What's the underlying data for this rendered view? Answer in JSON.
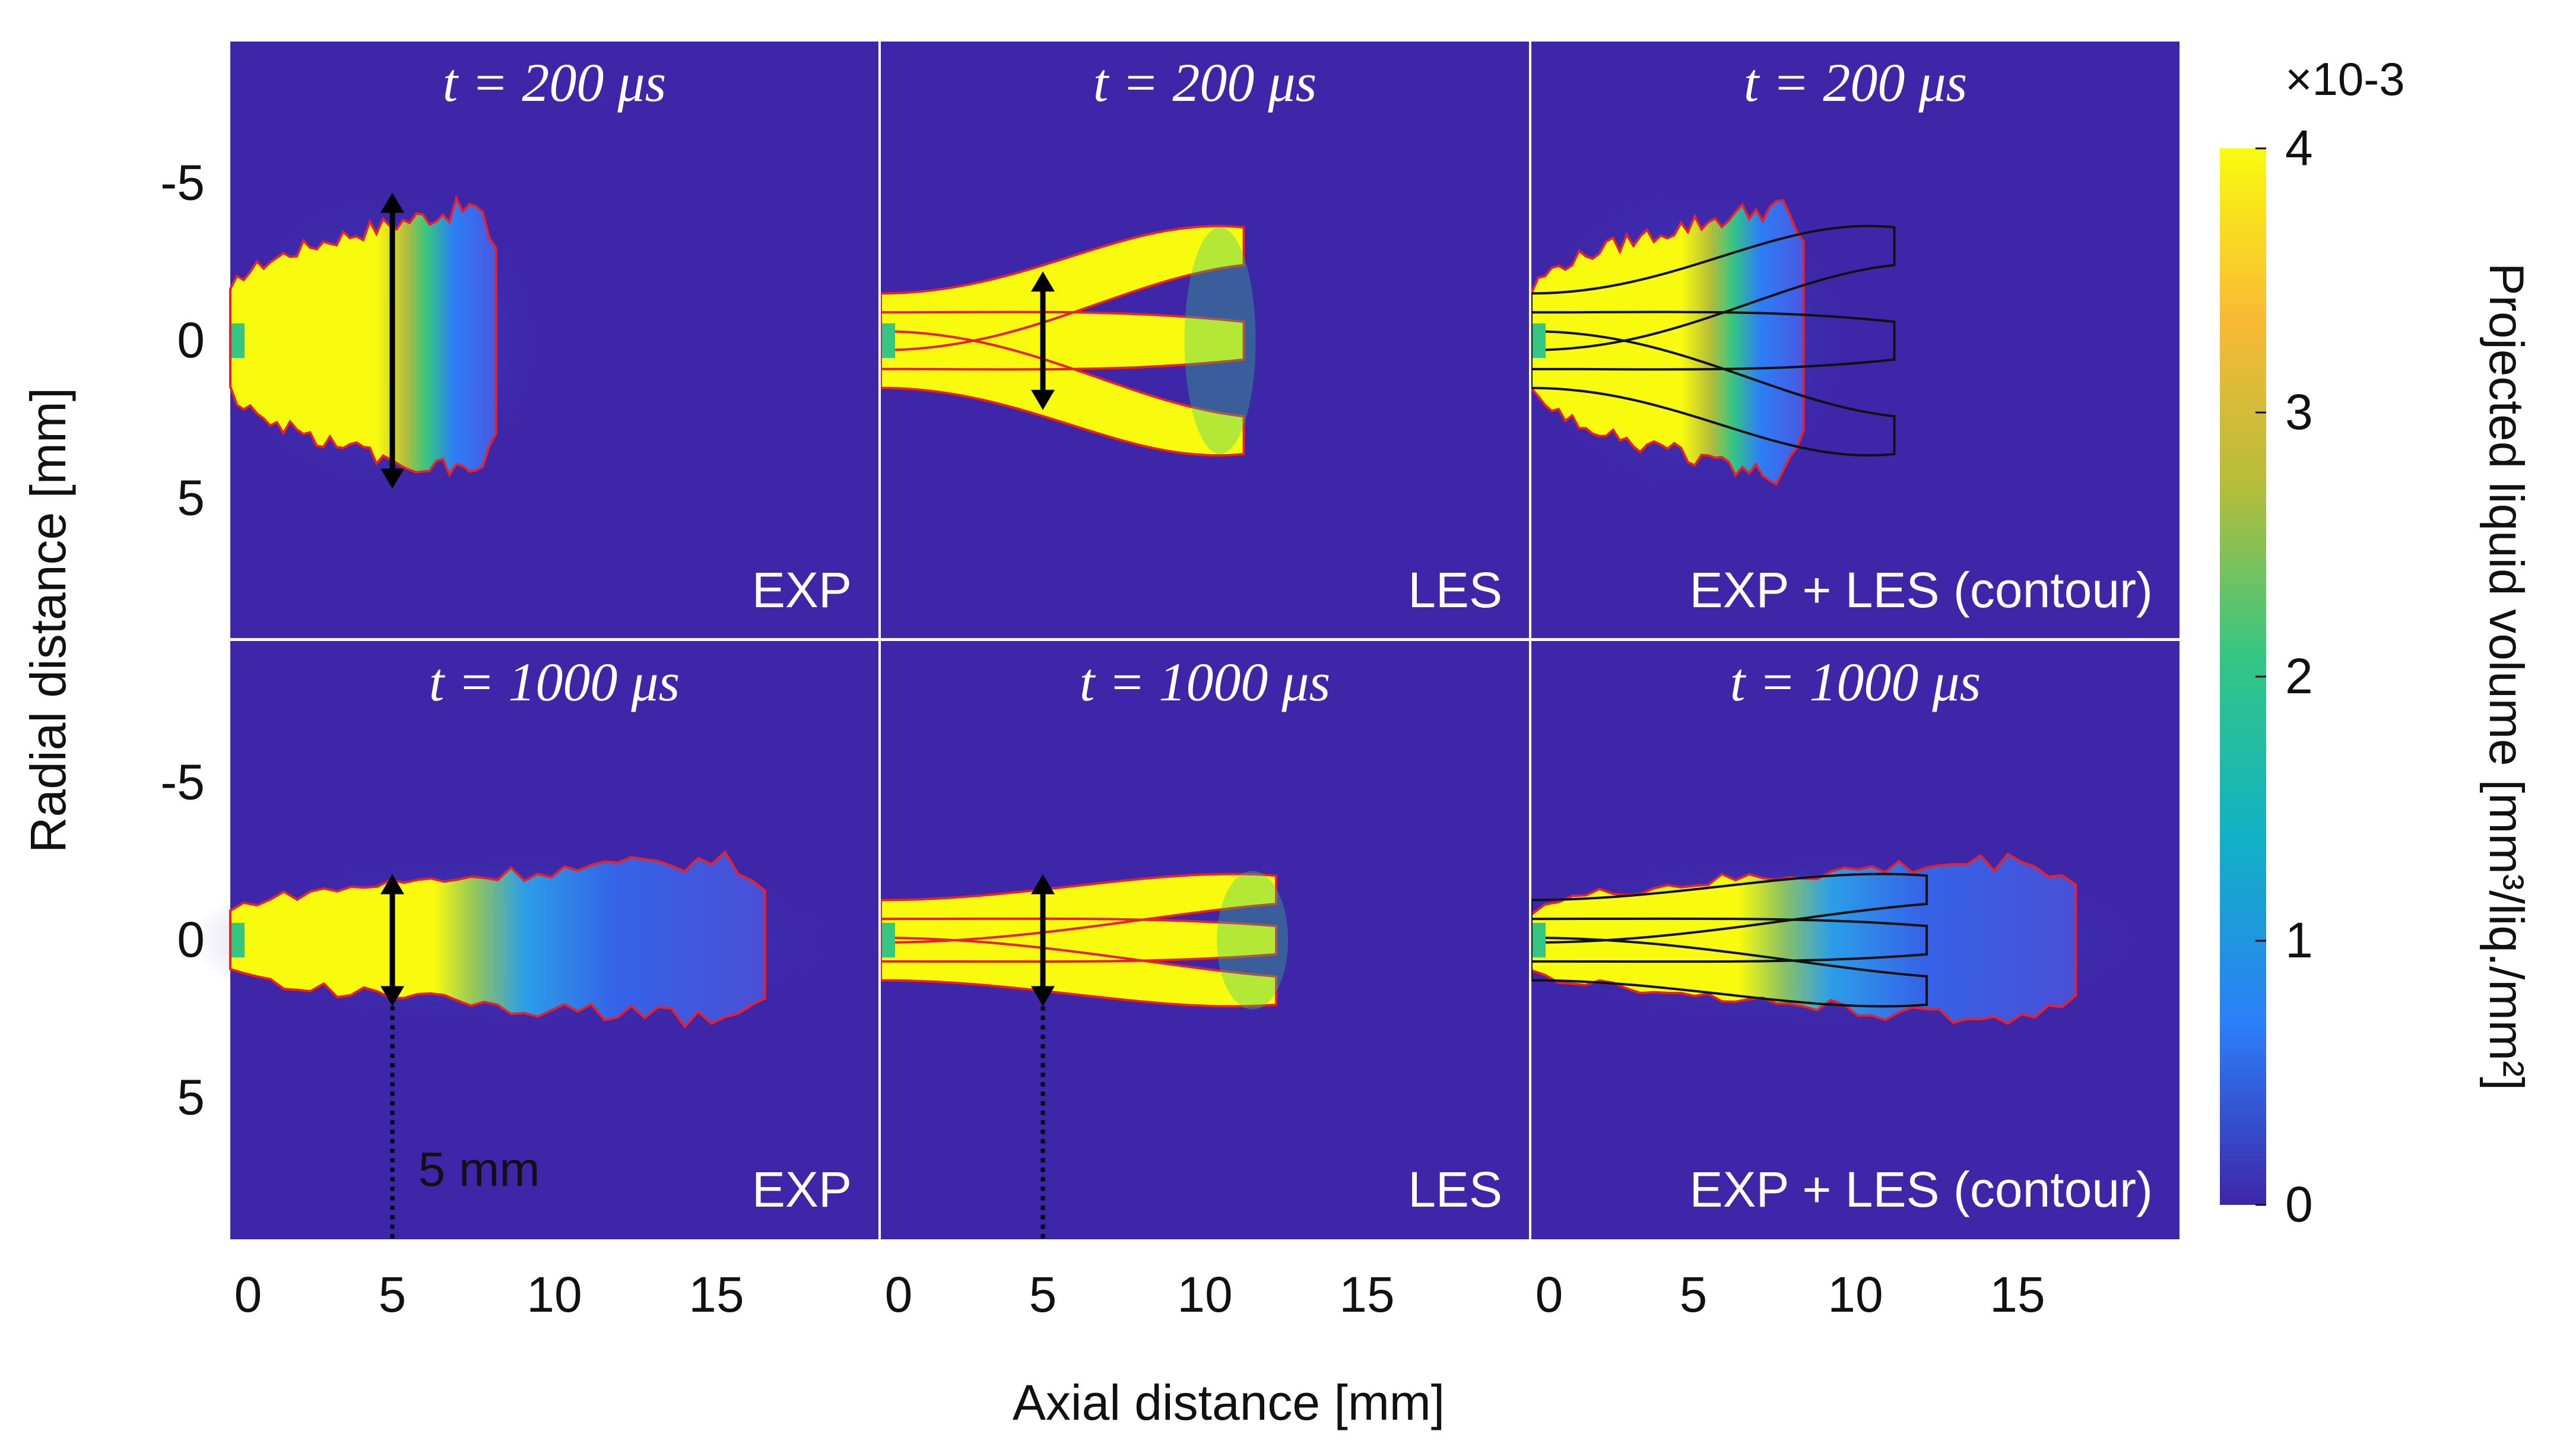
{
  "chart_data": {
    "type": "heatmap",
    "figure_description_axes": {
      "xlabel": "Axial distance [mm]",
      "ylabel": "Radial distance [mm]",
      "xlim": [
        0,
        20
      ],
      "ylim": [
        -9.5,
        9.5
      ],
      "x_ticks": [
        "0",
        "5",
        "10",
        "15"
      ],
      "x_tick_values": [
        0,
        5,
        10,
        15
      ],
      "y_ticks": [
        "-5",
        "0",
        "5"
      ],
      "y_tick_values": [
        -5,
        0,
        5
      ]
    },
    "colorbar": {
      "label": "Projected liquid volume [mm³/liq./mm²]",
      "multiplier": "×10-3",
      "ticks": [
        "0",
        "1",
        "2",
        "3",
        "4"
      ],
      "tick_values": [
        0,
        1,
        2,
        3,
        4
      ],
      "range": [
        0,
        4
      ],
      "colors": [
        "#3e26a8",
        "#2c7ef7",
        "#12b2c4",
        "#35c683",
        "#b5bd3b",
        "#f9ba35",
        "#f9fb0e"
      ]
    },
    "panels": [
      {
        "row": 1,
        "col": 1,
        "time": "t = 200 μs",
        "label": "EXP",
        "kind": "exp",
        "tip": 8.2,
        "half_width": 4.4,
        "arrow_x": 5,
        "arrow_half": 4.7
      },
      {
        "row": 1,
        "col": 2,
        "time": "t = 200 μs",
        "label": "LES",
        "kind": "les",
        "tip": 11.2,
        "half_width": 4.1,
        "arrow_x": 5,
        "arrow_half": 2.2
      },
      {
        "row": 1,
        "col": 3,
        "time": "t = 200 μs",
        "label": "EXP + LES (contour)",
        "kind": "both",
        "tip": 8.4,
        "half_width": 4.4
      },
      {
        "row": 2,
        "col": 1,
        "time": "t = 1000 μs",
        "label": "EXP",
        "kind": "exp",
        "tip": 16.5,
        "half_width": 2.5,
        "arrow_x": 5,
        "arrow_half": 2.1,
        "dotted_x": 5
      },
      {
        "row": 2,
        "col": 2,
        "time": "t = 1000 μs",
        "label": "LES",
        "kind": "les",
        "tip": 12.2,
        "half_width": 2.6,
        "arrow_x": 5,
        "arrow_half": 2.1,
        "dotted_x": 5
      },
      {
        "row": 2,
        "col": 3,
        "time": "t = 1000 μs",
        "label": "EXP + LES (contour)",
        "kind": "both",
        "tip": 16.8,
        "half_width": 2.5
      }
    ],
    "annotations": [
      "5 mm"
    ]
  },
  "colors": {
    "background": "#3e26a8",
    "core": "#f9fb0e",
    "red_contour": "#e8202a",
    "black_contour": "#111111"
  }
}
